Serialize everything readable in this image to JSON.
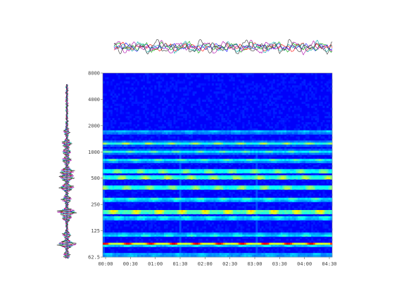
{
  "chart_data": {
    "type": "heatmap",
    "title": "",
    "xlabel": "",
    "ylabel": "",
    "x_ticks": [
      "00:00",
      "00:30",
      "01:00",
      "01:30",
      "02:00",
      "02:30",
      "03:00",
      "03:30",
      "04:00",
      "04:30"
    ],
    "y_ticks": [
      "62.5",
      "125",
      "250",
      "500",
      "1000",
      "2000",
      "4000",
      "8000"
    ],
    "y_scale": "log",
    "grid": false,
    "colormap": "jet",
    "bands": [
      {
        "freq": 66,
        "strength": 0.25
      },
      {
        "freq": 88,
        "strength": 0.95
      },
      {
        "freq": 112,
        "strength": 0.35
      },
      {
        "freq": 175,
        "strength": 0.4
      },
      {
        "freq": 205,
        "strength": 0.9
      },
      {
        "freq": 285,
        "strength": 0.45
      },
      {
        "freq": 390,
        "strength": 0.7
      },
      {
        "freq": 510,
        "strength": 0.75
      },
      {
        "freq": 600,
        "strength": 0.65
      },
      {
        "freq": 800,
        "strength": 0.4
      },
      {
        "freq": 1000,
        "strength": 0.35
      },
      {
        "freq": 1250,
        "strength": 0.45
      },
      {
        "freq": 1700,
        "strength": 0.2
      }
    ],
    "top_waveforms_colors": [
      "#0000ff",
      "#ff0000",
      "#00aa00",
      "#00aaaa",
      "#aa00aa",
      "#333333"
    ],
    "side_waveforms_colors": [
      "#0000ff",
      "#ff0000",
      "#00aa00",
      "#00aaaa",
      "#aa00aa",
      "#333333"
    ]
  }
}
